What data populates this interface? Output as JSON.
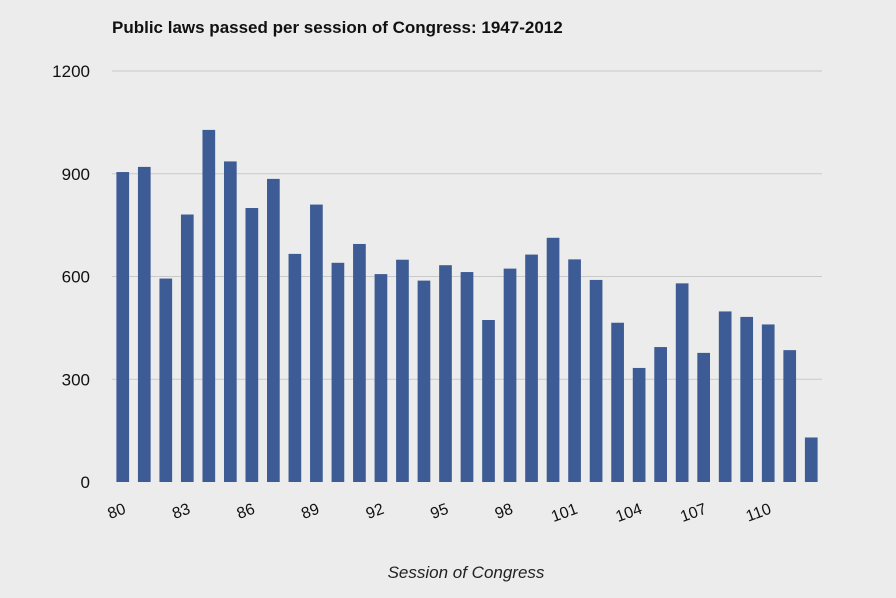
{
  "chart_data": {
    "type": "bar",
    "title": "Public laws passed per session of Congress: 1947-2012",
    "subtitle": "",
    "xlabel": "Session of Congress",
    "ylabel": "",
    "ylim": [
      0,
      1200
    ],
    "yticks": [
      0,
      300,
      600,
      900,
      1200
    ],
    "grid": true,
    "legend": "none",
    "bar_color": "#3d5b94",
    "categories": [
      "80",
      "81",
      "82",
      "83",
      "84",
      "85",
      "86",
      "87",
      "88",
      "89",
      "90",
      "91",
      "92",
      "93",
      "94",
      "95",
      "96",
      "97",
      "98",
      "99",
      "100",
      "101",
      "102",
      "103",
      "104",
      "105",
      "106",
      "107",
      "108",
      "109",
      "110",
      "111",
      "112"
    ],
    "xtick_labels": [
      "80",
      "83",
      "86",
      "89",
      "92",
      "95",
      "98",
      "101",
      "104",
      "107",
      "110"
    ],
    "values": [
      905,
      920,
      594,
      781,
      1028,
      936,
      800,
      885,
      666,
      810,
      640,
      695,
      607,
      649,
      588,
      633,
      613,
      473,
      623,
      664,
      713,
      650,
      590,
      465,
      333,
      394,
      580,
      377,
      498,
      482,
      460,
      385,
      130
    ]
  }
}
